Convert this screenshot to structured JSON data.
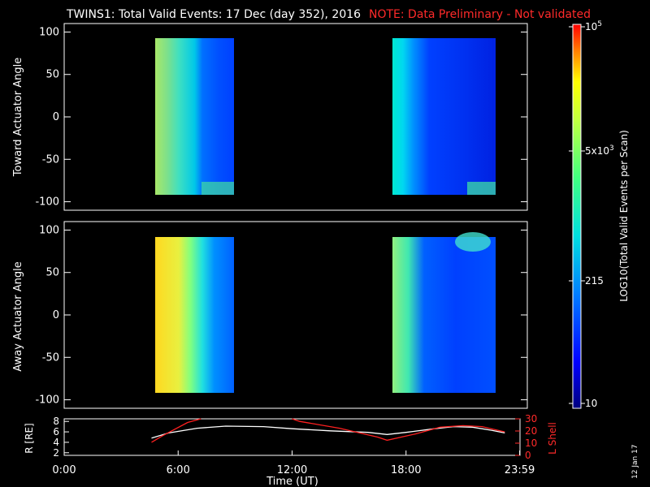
{
  "header": {
    "title": "TWINS1: Total Valid Events: 17 Dec (day 352), 2016",
    "note": "NOTE: Data Preliminary - Not validated"
  },
  "colorbar": {
    "label": "LOG10(Total Valid Events per Scan)",
    "ticks": [
      "10",
      "215",
      "5x10^3",
      "10^5"
    ],
    "colors": [
      "#000080",
      "#0000ff",
      "#0080ff",
      "#00e0e0",
      "#40ff80",
      "#c0ff40",
      "#ffff00",
      "#ff8000",
      "#ff0000"
    ]
  },
  "footer": {
    "date_stamp": "12 Jan 17"
  },
  "chart_data": [
    {
      "type": "heatmap",
      "panel": "top",
      "ylabel": "Toward Actuator Angle",
      "y_ticks": [
        "100",
        "50",
        "0",
        "-50",
        "-100"
      ],
      "ylim": [
        -110,
        110
      ],
      "xlim": [
        0,
        24
      ],
      "data_time_ranges_ut": [
        [
          4.6,
          8.7
        ],
        [
          17.0,
          23.2
        ]
      ],
      "data_angle_range": [
        -88,
        90
      ]
    },
    {
      "type": "heatmap",
      "panel": "middle",
      "ylabel": "Away Actuator Angle",
      "y_ticks": [
        "100",
        "50",
        "0",
        "-50",
        "-100"
      ],
      "ylim": [
        -110,
        110
      ],
      "xlim": [
        0,
        24
      ],
      "data_time_ranges_ut": [
        [
          4.6,
          8.7
        ],
        [
          17.0,
          23.2
        ]
      ],
      "data_angle_range": [
        -88,
        90
      ]
    },
    {
      "type": "line",
      "panel": "bottom",
      "ylabel": "R [RE]",
      "ylabel_right": "L Shell",
      "y_ticks_left": [
        "8",
        "6",
        "4",
        "2"
      ],
      "y_ticks_right": [
        "30",
        "20",
        "10",
        "0"
      ],
      "ylim_left": [
        1.5,
        8.5
      ],
      "ylim_right": [
        0,
        30
      ],
      "x_ticks": [
        "0:00",
        "6:00",
        "12:00",
        "18:00",
        "23:59"
      ],
      "xlabel": "Time (UT)",
      "series": [
        {
          "color": "#ffffff",
          "x": [
            4.6,
            5.5,
            7,
            8.5,
            10.5,
            12,
            14,
            16,
            17,
            18,
            19.5,
            20.5,
            21.5,
            22.5,
            23.2
          ],
          "y": [
            4.8,
            5.8,
            6.7,
            7.1,
            7.0,
            6.6,
            6.2,
            5.9,
            5.5,
            5.9,
            6.6,
            7.0,
            6.9,
            6.3,
            5.8
          ]
        },
        {
          "color": "#ff2020",
          "x": [
            4.6,
            5.2,
            6.5,
            7.2
          ],
          "y": [
            4.0,
            5.3,
            7.8,
            8.5
          ]
        },
        {
          "color": "#ff2020",
          "x": [
            12.0,
            12.4,
            14.5,
            16.5,
            17.0,
            18.5,
            19.8,
            21.0,
            22.0,
            23.2
          ],
          "y": [
            8.5,
            8.0,
            6.7,
            5.0,
            4.4,
            5.6,
            6.9,
            7.2,
            7.0,
            6.0
          ]
        }
      ]
    }
  ]
}
